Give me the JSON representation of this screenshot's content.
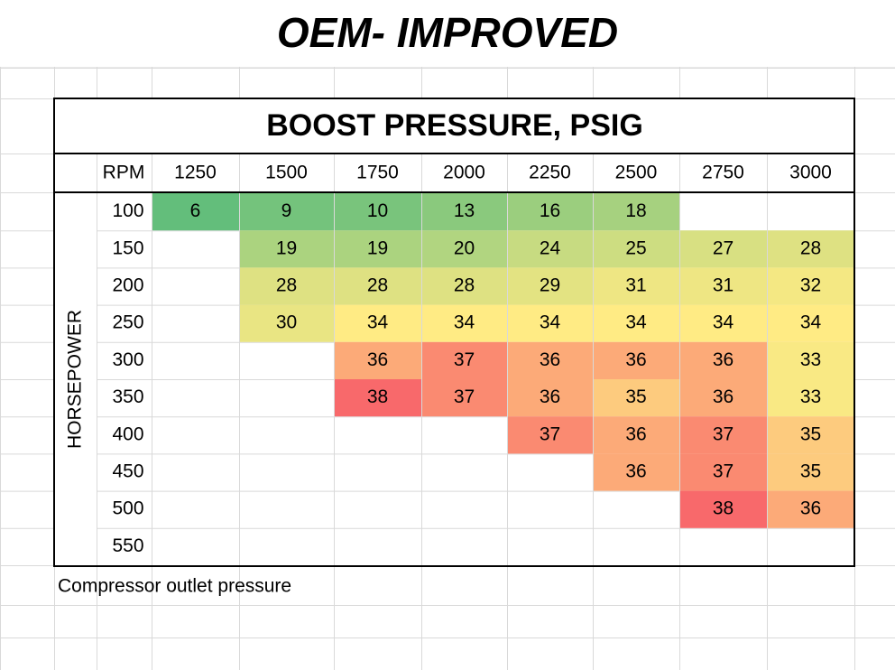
{
  "title": "OEM- IMPROVED",
  "table": {
    "heading": "BOOST PRESSURE, PSIG",
    "column_header": "RPM",
    "row_header": "HORSEPOWER",
    "columns": [
      1250,
      1500,
      1750,
      2000,
      2250,
      2500,
      2750,
      3000
    ],
    "color_scale": [
      "#63be7b",
      "#ffeb84",
      "#f8696b"
    ],
    "rows": [
      {
        "label": 100,
        "values": [
          6,
          9,
          10,
          13,
          16,
          18,
          null,
          null
        ]
      },
      {
        "label": 150,
        "values": [
          null,
          19,
          19,
          20,
          24,
          25,
          27,
          28
        ]
      },
      {
        "label": 200,
        "values": [
          null,
          28,
          28,
          28,
          29,
          31,
          31,
          32
        ]
      },
      {
        "label": 250,
        "values": [
          null,
          30,
          34,
          34,
          34,
          34,
          34,
          34
        ]
      },
      {
        "label": 300,
        "values": [
          null,
          null,
          36,
          37,
          36,
          36,
          36,
          33
        ]
      },
      {
        "label": 350,
        "values": [
          null,
          null,
          38,
          37,
          36,
          35,
          36,
          33
        ]
      },
      {
        "label": 400,
        "values": [
          null,
          null,
          null,
          null,
          37,
          36,
          37,
          35
        ]
      },
      {
        "label": 450,
        "values": [
          null,
          null,
          null,
          null,
          null,
          36,
          37,
          35
        ]
      },
      {
        "label": 500,
        "values": [
          null,
          null,
          null,
          null,
          null,
          null,
          38,
          36
        ]
      },
      {
        "label": 550,
        "values": [
          null,
          null,
          null,
          null,
          null,
          null,
          null,
          null
        ]
      }
    ]
  },
  "caption": "Compressor outlet pressure"
}
